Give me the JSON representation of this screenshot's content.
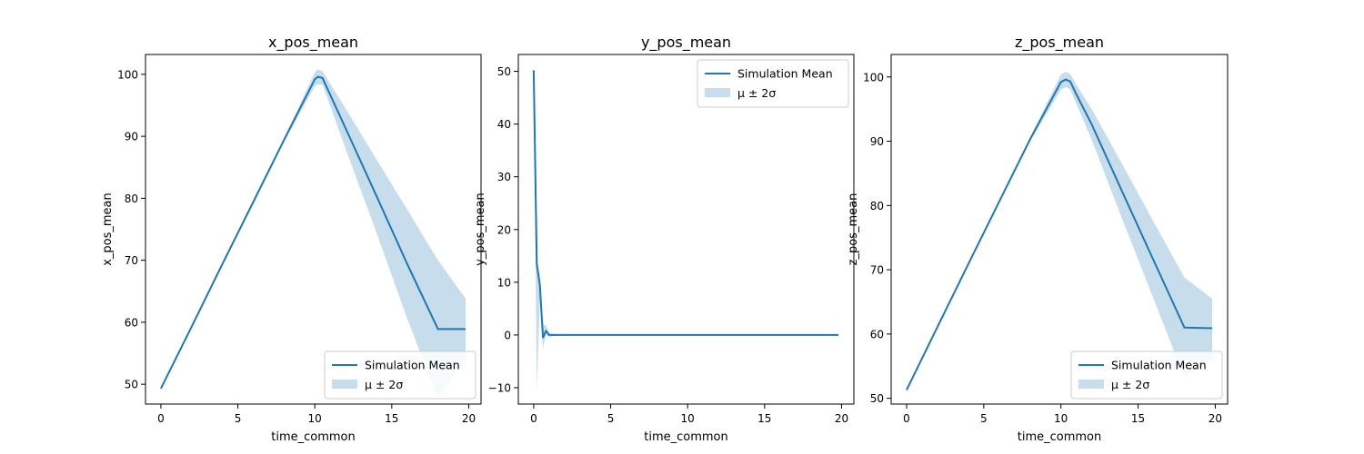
{
  "colors": {
    "line": "#1f77b4",
    "band": "#1f77b4",
    "frame": "#000000",
    "background": "#ffffff"
  },
  "chart_data": [
    {
      "type": "line",
      "title": "x_pos_mean",
      "xlabel": "time_common",
      "ylabel": "x_pos_mean",
      "xlim": [
        -1.0,
        20.8
      ],
      "ylim": [
        46.8,
        103.2
      ],
      "xticks": [
        0,
        5,
        10,
        15,
        20
      ],
      "yticks": [
        50,
        60,
        70,
        80,
        90,
        100
      ],
      "legend": "lower right",
      "grid": false,
      "series": [
        {
          "name": "Simulation Mean",
          "x": [
            0,
            2,
            4,
            6,
            8,
            10,
            10.2,
            10.5,
            10.8,
            12,
            14,
            16,
            18,
            19.8
          ],
          "y": [
            49.3,
            59.3,
            69.4,
            79.4,
            89.4,
            99.2,
            99.6,
            99.4,
            97.8,
            91.3,
            80.4,
            69.4,
            58.9,
            58.9
          ]
        },
        {
          "name": "μ ± 2σ",
          "type": "band",
          "x": [
            0,
            2,
            4,
            6,
            8,
            10,
            10.2,
            10.5,
            10.8,
            12,
            14,
            16,
            18,
            19.8
          ],
          "upper": [
            49.3,
            59.3,
            69.5,
            79.6,
            89.7,
            100.3,
            100.8,
            100.5,
            99.3,
            94.5,
            86.3,
            78.2,
            70.0,
            63.8
          ],
          "lower": [
            49.3,
            59.3,
            69.3,
            79.2,
            89.1,
            98.1,
            98.4,
            98.3,
            96.3,
            88.0,
            74.5,
            60.6,
            47.8,
            54.0
          ]
        }
      ]
    },
    {
      "type": "line",
      "title": "y_pos_mean",
      "xlabel": "time_common",
      "ylabel": "y_pos_mean",
      "xlim": [
        -1.0,
        20.8
      ],
      "ylim": [
        -13.1,
        53.2
      ],
      "xticks": [
        0,
        5,
        10,
        15,
        20
      ],
      "yticks": [
        -10,
        0,
        10,
        20,
        30,
        40,
        50
      ],
      "legend": "upper right",
      "grid": false,
      "series": [
        {
          "name": "Simulation Mean",
          "x": [
            0,
            0.2,
            0.4,
            0.6,
            0.8,
            1.0,
            2,
            5,
            10,
            15,
            19.8
          ],
          "y": [
            50.2,
            13.5,
            9.5,
            -0.5,
            0.8,
            0,
            0,
            0,
            0,
            0,
            0
          ]
        },
        {
          "name": "μ ± 2σ",
          "type": "band",
          "x": [
            0,
            0.2,
            0.4,
            0.6,
            0.8,
            1.0,
            2,
            5,
            10,
            15,
            19.8
          ],
          "upper": [
            50.2,
            14.5,
            11.0,
            2.0,
            1.8,
            0.3,
            0,
            0,
            0,
            0,
            0
          ],
          "lower": [
            50.2,
            -10.5,
            7.0,
            -2.5,
            0,
            -0.3,
            0,
            0,
            0,
            0,
            0
          ]
        }
      ]
    },
    {
      "type": "line",
      "title": "z_pos_mean",
      "xlabel": "time_common",
      "ylabel": "z_pos_mean",
      "xlim": [
        -1.0,
        20.8
      ],
      "ylim": [
        49.1,
        103.5
      ],
      "xticks": [
        0,
        5,
        10,
        15,
        20
      ],
      "yticks": [
        50,
        60,
        70,
        80,
        90,
        100
      ],
      "legend": "lower right",
      "grid": false,
      "series": [
        {
          "name": "Simulation Mean",
          "x": [
            0,
            2,
            4,
            6,
            8,
            10,
            10.3,
            10.6,
            11,
            12,
            14,
            16,
            18,
            19.8
          ],
          "y": [
            51.3,
            61.1,
            70.9,
            80.6,
            90.3,
            99.2,
            99.6,
            99.3,
            97.3,
            92.6,
            82.0,
            71.5,
            61.0,
            60.9
          ]
        },
        {
          "name": "μ ± 2σ",
          "type": "band",
          "x": [
            0,
            2,
            4,
            6,
            8,
            10,
            10.3,
            10.6,
            11,
            12,
            14,
            16,
            18,
            19.8
          ],
          "upper": [
            51.3,
            61.2,
            71.0,
            80.8,
            90.6,
            100.4,
            100.8,
            100.5,
            98.8,
            95.0,
            86.3,
            77.5,
            68.8,
            65.5
          ],
          "lower": [
            51.3,
            61.0,
            70.8,
            80.4,
            90.0,
            98.0,
            98.4,
            98.1,
            95.8,
            90.2,
            77.7,
            65.5,
            53.2,
            56.0
          ]
        }
      ]
    }
  ]
}
